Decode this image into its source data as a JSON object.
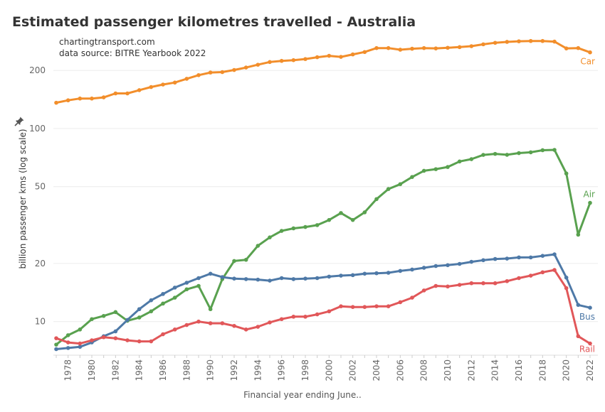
{
  "chart_data": {
    "type": "line",
    "title": "Estimated passenger kilometres travelled - Australia",
    "source_lines": [
      "chartingtransport.com",
      "data source: BITRE Yearbook 2022"
    ],
    "xlabel": "Financial year ending June..",
    "ylabel": "billion passenger kms (log scale)",
    "y_scale": "log",
    "ylim": [
      6.7,
      330
    ],
    "y_ticks": [
      10,
      20,
      50,
      100,
      200
    ],
    "x_tick_labels": [
      "1978",
      "1980",
      "1982",
      "1984",
      "1986",
      "1988",
      "1990",
      "1992",
      "1994",
      "1996",
      "1998",
      "2000",
      "2002",
      "2004",
      "2006",
      "2008",
      "2010",
      "2012",
      "2014",
      "2016",
      "2018",
      "2020",
      "2022"
    ],
    "x": [
      1977,
      1978,
      1979,
      1980,
      1981,
      1982,
      1983,
      1984,
      1985,
      1986,
      1987,
      1988,
      1989,
      1990,
      1991,
      1992,
      1993,
      1994,
      1995,
      1996,
      1997,
      1998,
      1999,
      2000,
      2001,
      2002,
      2003,
      2004,
      2005,
      2006,
      2007,
      2008,
      2009,
      2010,
      2011,
      2012,
      2013,
      2014,
      2015,
      2016,
      2017,
      2018,
      2019,
      2020,
      2021,
      2022
    ],
    "series": [
      {
        "name": "Car",
        "color": "#f28e2b",
        "values": [
          136,
          140,
          143,
          143,
          145,
          152,
          152,
          158,
          164,
          169,
          173,
          181,
          189,
          195,
          196,
          201,
          207,
          214,
          221,
          224,
          226,
          229,
          234,
          238,
          235,
          242,
          249,
          261,
          261,
          256,
          259,
          261,
          260,
          262,
          264,
          267,
          273,
          278,
          281,
          283,
          284,
          284,
          282,
          260,
          261,
          248
        ]
      },
      {
        "name": "Air",
        "color": "#59a14f",
        "values": [
          7.6,
          8.5,
          9.1,
          10.3,
          10.7,
          11.2,
          10.1,
          10.5,
          11.3,
          12.4,
          13.3,
          14.7,
          15.3,
          11.6,
          16.6,
          20.6,
          20.9,
          24.7,
          27.3,
          29.5,
          30.4,
          30.9,
          31.6,
          33.6,
          36.5,
          33.6,
          36.8,
          43.1,
          48.6,
          51.5,
          56.1,
          60.4,
          61.6,
          63.2,
          67.5,
          69.4,
          73.0,
          73.9,
          73.1,
          74.6,
          75.3,
          77.2,
          77.5,
          58.5,
          28.2,
          41.2
        ]
      },
      {
        "name": "Bus",
        "color": "#4e79a7",
        "values": [
          7.2,
          7.3,
          7.4,
          7.8,
          8.4,
          8.9,
          10.2,
          11.6,
          12.9,
          13.9,
          15.0,
          15.9,
          16.8,
          17.7,
          17.0,
          16.7,
          16.6,
          16.5,
          16.3,
          16.8,
          16.6,
          16.7,
          16.8,
          17.1,
          17.3,
          17.4,
          17.7,
          17.8,
          17.9,
          18.3,
          18.6,
          19.0,
          19.4,
          19.6,
          19.9,
          20.4,
          20.8,
          21.1,
          21.2,
          21.5,
          21.5,
          21.9,
          22.3,
          16.9,
          12.2,
          11.8
        ]
      },
      {
        "name": "Rail",
        "color": "#e15759",
        "values": [
          8.2,
          7.8,
          7.7,
          8.0,
          8.3,
          8.2,
          8.0,
          7.9,
          7.9,
          8.6,
          9.1,
          9.6,
          10.0,
          9.8,
          9.8,
          9.5,
          9.1,
          9.4,
          9.9,
          10.3,
          10.6,
          10.6,
          10.9,
          11.3,
          12.0,
          11.9,
          11.9,
          12.0,
          12.0,
          12.6,
          13.3,
          14.5,
          15.3,
          15.2,
          15.5,
          15.8,
          15.8,
          15.8,
          16.2,
          16.8,
          17.3,
          18.0,
          18.5,
          14.9,
          8.4,
          7.7
        ]
      }
    ]
  }
}
